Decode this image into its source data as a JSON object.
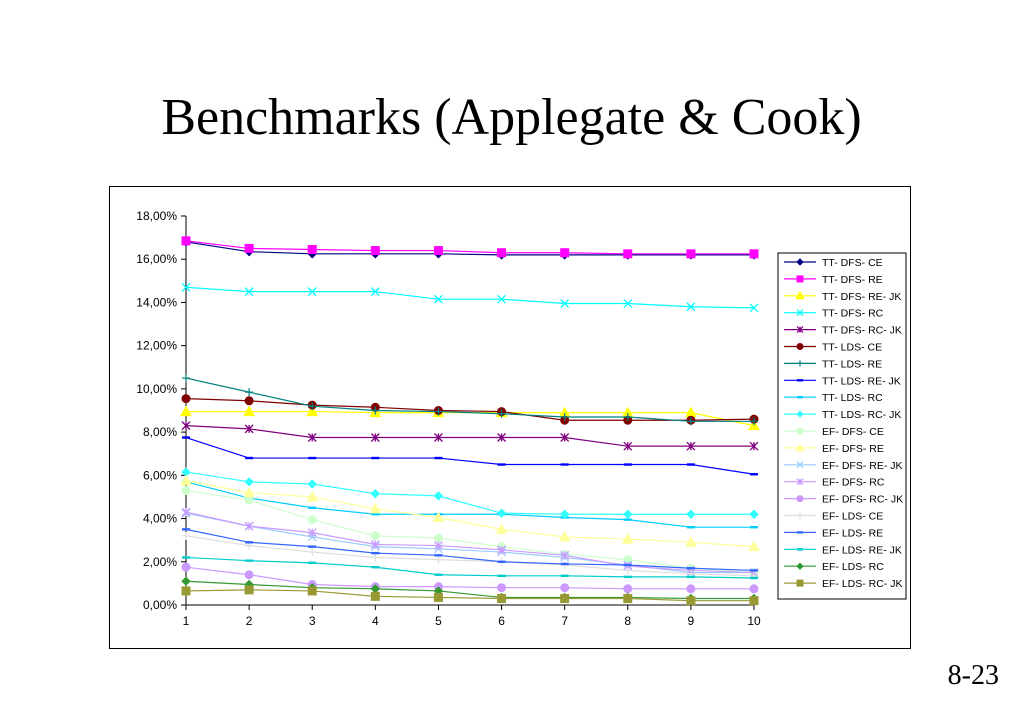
{
  "slide": {
    "title": "Benchmarks (Applegate & Cook)",
    "page_number": "8-23"
  },
  "chart_data": {
    "type": "line",
    "title": "",
    "xlabel": "",
    "ylabel": "",
    "x": [
      1,
      2,
      3,
      4,
      5,
      6,
      7,
      8,
      9,
      10
    ],
    "ylim": [
      0,
      18
    ],
    "y_ticks": [
      "0,00%",
      "2,00%",
      "4,00%",
      "6,00%",
      "8,00%",
      "10,00%",
      "12,00%",
      "14,00%",
      "16,00%",
      "18,00%"
    ],
    "grid": false,
    "legend_position": "right",
    "series": [
      {
        "name": "TT- DFS- CE",
        "color": "#000080",
        "marker": "diamond",
        "values": [
          16.8,
          16.35,
          16.25,
          16.25,
          16.25,
          16.2,
          16.2,
          16.2,
          16.2,
          16.2
        ]
      },
      {
        "name": "TT- DFS- RE",
        "color": "#ff00ff",
        "marker": "square",
        "values": [
          16.85,
          16.5,
          16.45,
          16.4,
          16.4,
          16.3,
          16.3,
          16.25,
          16.25,
          16.25
        ]
      },
      {
        "name": "TT- DFS- RE- JK",
        "color": "#ffff00",
        "marker": "triangle",
        "values": [
          8.95,
          8.95,
          8.95,
          8.9,
          8.9,
          8.9,
          8.9,
          8.9,
          8.9,
          8.3
        ]
      },
      {
        "name": "TT- DFS- RC",
        "color": "#00ffff",
        "marker": "x",
        "values": [
          14.7,
          14.5,
          14.5,
          14.5,
          14.15,
          14.15,
          13.95,
          13.95,
          13.8,
          13.75
        ]
      },
      {
        "name": "TT- DFS- RC- JK",
        "color": "#800080",
        "marker": "star",
        "values": [
          8.3,
          8.15,
          7.75,
          7.75,
          7.75,
          7.75,
          7.75,
          7.35,
          7.35,
          7.35
        ]
      },
      {
        "name": "TT- LDS- CE",
        "color": "#800000",
        "marker": "circle",
        "values": [
          9.55,
          9.45,
          9.25,
          9.15,
          9.0,
          8.95,
          8.55,
          8.55,
          8.55,
          8.6
        ]
      },
      {
        "name": "TT- LDS- RE",
        "color": "#008080",
        "marker": "plus",
        "values": [
          10.5,
          9.85,
          9.2,
          9.0,
          8.95,
          8.85,
          8.7,
          8.7,
          8.5,
          8.5
        ]
      },
      {
        "name": "TT- LDS- RE- JK",
        "color": "#0000ff",
        "marker": "dash",
        "values": [
          7.75,
          6.8,
          6.8,
          6.8,
          6.8,
          6.5,
          6.5,
          6.5,
          6.5,
          6.05
        ]
      },
      {
        "name": "TT- LDS- RC",
        "color": "#00ccff",
        "marker": "dash",
        "values": [
          5.7,
          4.95,
          4.5,
          4.2,
          4.2,
          4.2,
          4.05,
          3.95,
          3.6,
          3.6
        ]
      },
      {
        "name": "TT- LDS- RC- JK",
        "color": "#33ffff",
        "marker": "diamond",
        "values": [
          6.15,
          5.7,
          5.6,
          5.15,
          5.05,
          4.25,
          4.2,
          4.2,
          4.2,
          4.2
        ]
      },
      {
        "name": "EF- DFS- CE",
        "color": "#ccffcc",
        "marker": "circle",
        "values": [
          5.3,
          4.85,
          3.95,
          3.2,
          3.1,
          2.7,
          2.35,
          2.1,
          1.7,
          1.5
        ]
      },
      {
        "name": "EF- DFS- RE",
        "color": "#ffff99",
        "marker": "triangle",
        "values": [
          5.75,
          5.2,
          5.0,
          4.45,
          4.05,
          3.5,
          3.15,
          3.05,
          2.9,
          2.7
        ]
      },
      {
        "name": "EF- DFS- RE- JK",
        "color": "#99ccff",
        "marker": "x",
        "values": [
          4.25,
          3.65,
          3.15,
          2.7,
          2.6,
          2.45,
          2.2,
          1.85,
          1.5,
          1.5
        ]
      },
      {
        "name": "EF- DFS- RC",
        "color": "#cc99ff",
        "marker": "star",
        "values": [
          4.3,
          3.65,
          3.35,
          2.8,
          2.75,
          2.55,
          2.3,
          1.8,
          1.6,
          1.5
        ]
      },
      {
        "name": "EF- DFS- RC- JK",
        "color": "#cc99ff",
        "marker": "circle",
        "values": [
          1.75,
          1.4,
          0.95,
          0.85,
          0.85,
          0.8,
          0.8,
          0.75,
          0.75,
          0.75
        ]
      },
      {
        "name": "EF- LDS- CE",
        "color": "#dddddd",
        "marker": "plus",
        "values": [
          3.2,
          2.75,
          2.45,
          2.2,
          2.1,
          2.0,
          1.85,
          1.6,
          1.45,
          1.35
        ]
      },
      {
        "name": "EF- LDS- RE",
        "color": "#3366ff",
        "marker": "dash",
        "values": [
          3.5,
          2.9,
          2.7,
          2.4,
          2.3,
          2.0,
          1.9,
          1.85,
          1.7,
          1.6
        ]
      },
      {
        "name": "EF- LDS- RE- JK",
        "color": "#00cccc",
        "marker": "dash",
        "values": [
          2.2,
          2.05,
          1.95,
          1.75,
          1.4,
          1.35,
          1.35,
          1.3,
          1.3,
          1.25
        ]
      },
      {
        "name": "EF- LDS- RC",
        "color": "#339933",
        "marker": "diamond",
        "values": [
          1.1,
          0.95,
          0.8,
          0.75,
          0.65,
          0.35,
          0.35,
          0.35,
          0.3,
          0.3
        ]
      },
      {
        "name": "EF- LDS- RC- JK",
        "color": "#999933",
        "marker": "square",
        "values": [
          0.65,
          0.7,
          0.65,
          0.4,
          0.35,
          0.3,
          0.3,
          0.3,
          0.2,
          0.2
        ]
      }
    ]
  }
}
